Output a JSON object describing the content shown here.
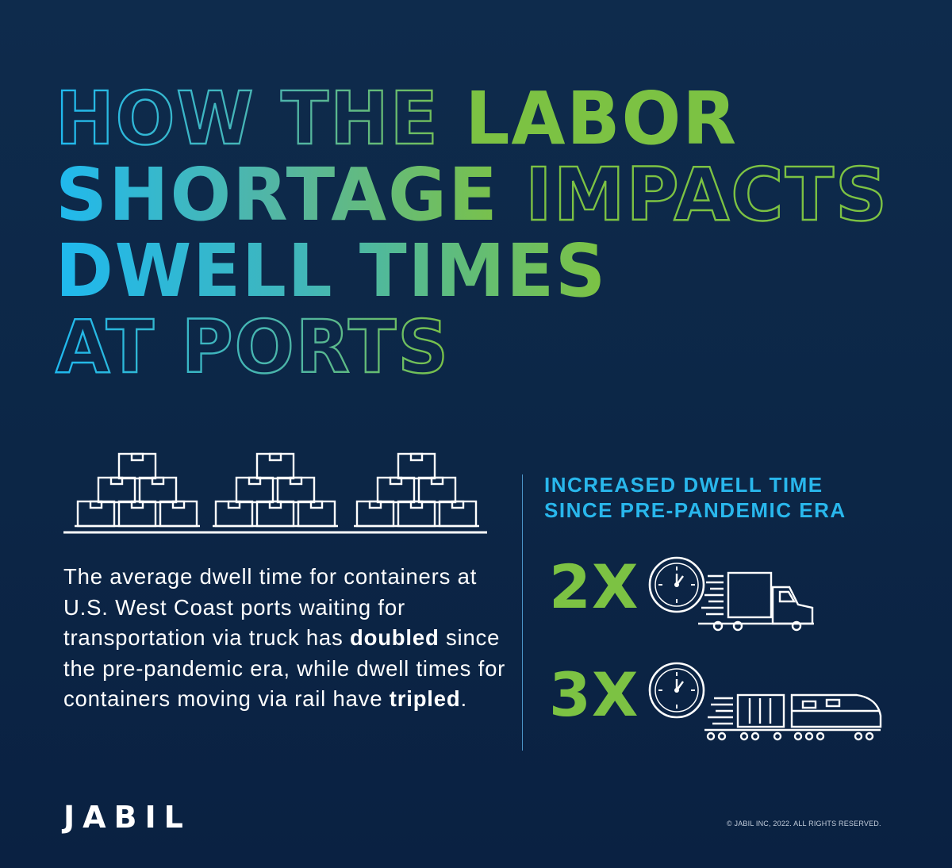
{
  "colors": {
    "background": "#0c2646",
    "blue": "#1fb9ef",
    "green": "#7cc243",
    "white": "#ffffff"
  },
  "title": {
    "line1": {
      "outline": "HOW THE ",
      "fill": "LABOR"
    },
    "line2": {
      "fill": "SHORTAGE ",
      "outline": "IMPACTS"
    },
    "line3": {
      "fill": "DWELL TIMES"
    },
    "line4": {
      "outline": "AT PORTS"
    }
  },
  "body": {
    "part1": "The average dwell time for containers at U.S. West Coast ports waiting for transportation via truck has ",
    "bold1": "doubled",
    "part2": " since the pre-pandemic era, while dwell times for containers moving via rail have ",
    "bold2": "tripled",
    "part3": "."
  },
  "stats": {
    "heading_line1": "INCREASED DWELL TIME",
    "heading_line2": "SINCE PRE-PANDEMIC ERA",
    "truck": {
      "multiplier": "2X",
      "icon": "clock-truck-icon"
    },
    "rail": {
      "multiplier": "3X",
      "icon": "clock-train-icon"
    }
  },
  "icons": {
    "pallets": "stacked-boxes-icon"
  },
  "footer": {
    "logo": "JABIL",
    "copyright": "© JABIL INC, 2022. ALL RIGHTS RESERVED."
  }
}
